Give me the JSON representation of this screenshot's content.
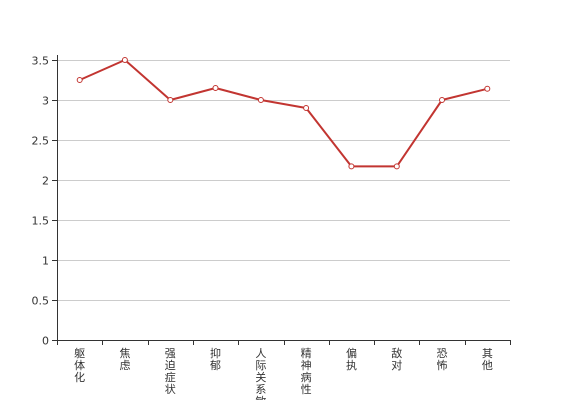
{
  "colors": {
    "series": "#c23531"
  },
  "chart_data": {
    "type": "line",
    "title": "",
    "xlabel": "",
    "ylabel": "",
    "categories": [
      "躯体化",
      "焦虑",
      "强迫症状",
      "抑郁",
      "人际关系敏感",
      "精神病性",
      "偏执",
      "敌对",
      "恐怖",
      "其他"
    ],
    "series": [
      {
        "values": [
          3.25,
          3.5,
          3.0,
          3.15,
          3.0,
          2.9,
          2.17,
          2.17,
          3.0,
          3.14
        ]
      }
    ],
    "ylim": [
      0,
      3.5
    ],
    "yticks": [
      "0",
      "0.5",
      "1",
      "1.5",
      "2",
      "2.5",
      "3",
      "3.5"
    ],
    "grid": true,
    "legend": "none"
  }
}
